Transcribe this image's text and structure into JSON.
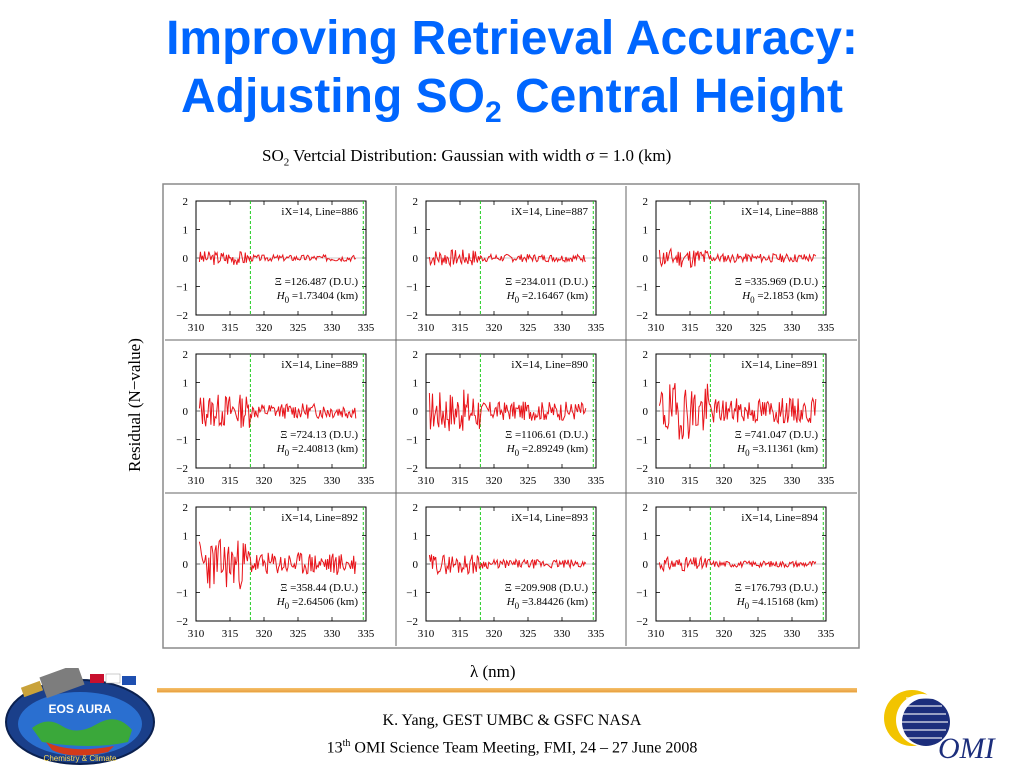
{
  "title": {
    "line1": "Improving Retrieval Accuracy:",
    "line2_pre": "Adjusting SO",
    "line2_sub": "2",
    "line2_post": " Central Height"
  },
  "subtitle": {
    "pre": "SO",
    "sub": "2",
    "post": " Vertcial Distribution: Gaussian with width σ = 1.0 (km)"
  },
  "footer": {
    "line1": "K. Yang, GEST UMBC  & GSFC NASA",
    "line2_num": "13",
    "line2_sup": "th",
    "line2_rest": " OMI Science Team Meeting, FMI, 24 – 27 June 2008"
  },
  "logos": {
    "eos_text": "EOS AURA",
    "eos_bottom": "Chemistry & Climate",
    "omi_text": "OMI"
  },
  "colors": {
    "title": "#0066ff",
    "residual_line": "#e8141a",
    "window_line": "#22cc22",
    "rule": "#f0b050"
  },
  "chart_data": {
    "type": "line",
    "xlabel": "λ (nm)",
    "ylabel": "Residual (N−value)",
    "xlim": [
      310,
      335
    ],
    "ylim": [
      -2,
      2
    ],
    "xticks": [
      310,
      315,
      320,
      325,
      330,
      335
    ],
    "yticks": [
      2,
      1,
      0,
      -1,
      -2
    ],
    "ytick_labels": [
      "2",
      "1",
      "0",
      "−1",
      "−2"
    ],
    "fit_window_nm": [
      318,
      336
    ],
    "panels": [
      {
        "label": "iX=14, Line=886",
        "xi": "Ξ =126.487 (D.U.)",
        "h0": "=1.73404 (km)",
        "amplitude": 0.25,
        "seed": 3
      },
      {
        "label": "iX=14, Line=887",
        "xi": "Ξ =234.011 (D.U.)",
        "h0": "=2.16467 (km)",
        "amplitude": 0.3,
        "seed": 7
      },
      {
        "label": "iX=14, Line=888",
        "xi": "Ξ =335.969 (D.U.)",
        "h0": "=2.1853 (km)",
        "amplitude": 0.35,
        "seed": 11
      },
      {
        "label": "iX=14, Line=889",
        "xi": "Ξ =724.13 (D.U.)",
        "h0": "=2.40813 (km)",
        "amplitude": 0.6,
        "seed": 13
      },
      {
        "label": "iX=14, Line=890",
        "xi": "Ξ =1106.61 (D.U.)",
        "h0": "=2.89249 (km)",
        "amplitude": 0.75,
        "seed": 17
      },
      {
        "label": "iX=14, Line=891",
        "xi": "Ξ =741.047 (D.U.)",
        "h0": "=3.11361 (km)",
        "amplitude": 1.0,
        "seed": 19
      },
      {
        "label": "iX=14, Line=892",
        "xi": "Ξ =358.44 (D.U.)",
        "h0": "=2.64506 (km)",
        "amplitude": 0.9,
        "seed": 23
      },
      {
        "label": "iX=14, Line=893",
        "xi": "Ξ =209.908 (D.U.)",
        "h0": "=3.84426 (km)",
        "amplitude": 0.35,
        "seed": 29
      },
      {
        "label": "iX=14, Line=894",
        "xi": "Ξ =176.793 (D.U.)",
        "h0": "=4.15168 (km)",
        "amplitude": 0.25,
        "seed": 31
      }
    ]
  }
}
